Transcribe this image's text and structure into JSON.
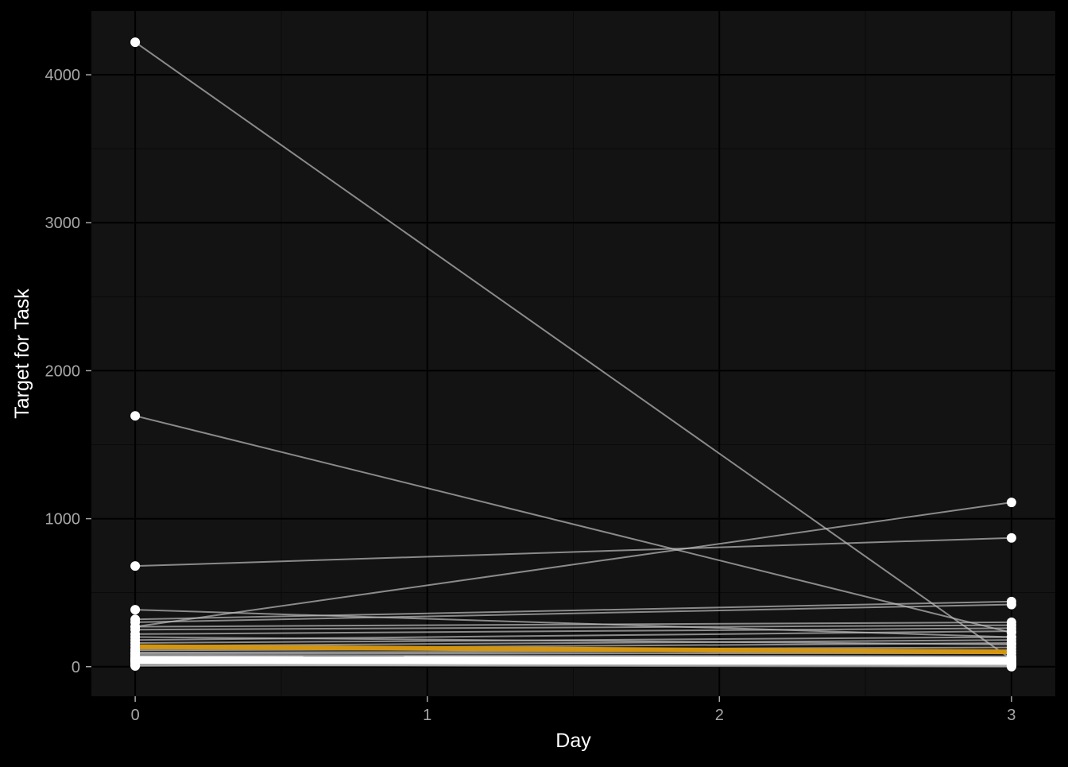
{
  "chart_data": {
    "type": "line",
    "title": "",
    "xlabel": "Day",
    "ylabel": "Target for Task",
    "xlim": [
      -0.15,
      3.15
    ],
    "ylim": [
      -200,
      4430
    ],
    "x_ticks": [
      0,
      1,
      2,
      3
    ],
    "x_tick_labels": [
      "0",
      "1",
      "2",
      "3"
    ],
    "y_ticks": [
      0,
      1000,
      2000,
      3000,
      4000
    ],
    "y_tick_labels": [
      "0",
      "1000",
      "2000",
      "3000",
      "4000"
    ],
    "grid": true,
    "legend": "none",
    "colors": {
      "background": "#000000",
      "panel": "#131313",
      "grid_major": "#000000",
      "grid_minor": "#0a0a0a",
      "lines": "#bdbdbd",
      "points": "#ffffff",
      "mean_line": "#d4960f",
      "thick_band": "#ffffff",
      "tick_text": "#a6a6a6",
      "axis_title": "#ffffff"
    },
    "series": [
      {
        "values": [
          [
            0,
            4220
          ],
          [
            3,
            50
          ]
        ]
      },
      {
        "values": [
          [
            0,
            1695
          ],
          [
            3,
            230
          ]
        ]
      },
      {
        "values": [
          [
            0,
            680
          ],
          [
            3,
            870
          ]
        ]
      },
      {
        "values": [
          [
            0,
            270
          ],
          [
            3,
            1110
          ]
        ]
      },
      {
        "values": [
          [
            0,
            385
          ],
          [
            3,
            200
          ]
        ]
      },
      {
        "values": [
          [
            0,
            320
          ],
          [
            3,
            440
          ]
        ]
      },
      {
        "values": [
          [
            0,
            300
          ],
          [
            3,
            420
          ]
        ]
      },
      {
        "values": [
          [
            0,
            270
          ],
          [
            3,
            300
          ]
        ]
      },
      {
        "values": [
          [
            0,
            250
          ],
          [
            3,
            280
          ]
        ]
      },
      {
        "values": [
          [
            0,
            220
          ],
          [
            3,
            260
          ]
        ]
      },
      {
        "values": [
          [
            0,
            200
          ],
          [
            3,
            150
          ]
        ]
      },
      {
        "values": [
          [
            0,
            180
          ],
          [
            3,
            240
          ]
        ]
      },
      {
        "values": [
          [
            0,
            160
          ],
          [
            3,
            200
          ]
        ]
      },
      {
        "values": [
          [
            0,
            140
          ],
          [
            3,
            180
          ]
        ]
      },
      {
        "values": [
          [
            0,
            120
          ],
          [
            3,
            160
          ]
        ]
      },
      {
        "values": [
          [
            0,
            110
          ],
          [
            3,
            130
          ]
        ]
      },
      {
        "values": [
          [
            0,
            95
          ],
          [
            3,
            110
          ]
        ]
      },
      {
        "values": [
          [
            0,
            90
          ],
          [
            3,
            90
          ]
        ]
      },
      {
        "values": [
          [
            0,
            80
          ],
          [
            3,
            70
          ]
        ]
      },
      {
        "values": [
          [
            0,
            70
          ],
          [
            3,
            60
          ]
        ]
      },
      {
        "values": [
          [
            0,
            60
          ],
          [
            3,
            50
          ]
        ]
      },
      {
        "values": [
          [
            0,
            55
          ],
          [
            3,
            40
          ]
        ]
      },
      {
        "values": [
          [
            0,
            50
          ],
          [
            3,
            30
          ]
        ]
      },
      {
        "values": [
          [
            0,
            45
          ],
          [
            3,
            25
          ]
        ]
      },
      {
        "values": [
          [
            0,
            40
          ],
          [
            3,
            20
          ]
        ]
      },
      {
        "values": [
          [
            0,
            35
          ],
          [
            3,
            15
          ]
        ]
      },
      {
        "values": [
          [
            0,
            30
          ],
          [
            3,
            10
          ]
        ]
      },
      {
        "values": [
          [
            0,
            20
          ],
          [
            3,
            5
          ]
        ]
      },
      {
        "values": [
          [
            0,
            10
          ],
          [
            3,
            0
          ]
        ]
      },
      {
        "values": [
          [
            0,
            5
          ],
          [
            3,
            20
          ]
        ]
      }
    ],
    "thick_band": {
      "values": [
        [
          0,
          45
        ],
        [
          3,
          40
        ]
      ]
    },
    "mean_series": {
      "values": [
        [
          0,
          135
        ],
        [
          3,
          100
        ]
      ]
    }
  }
}
